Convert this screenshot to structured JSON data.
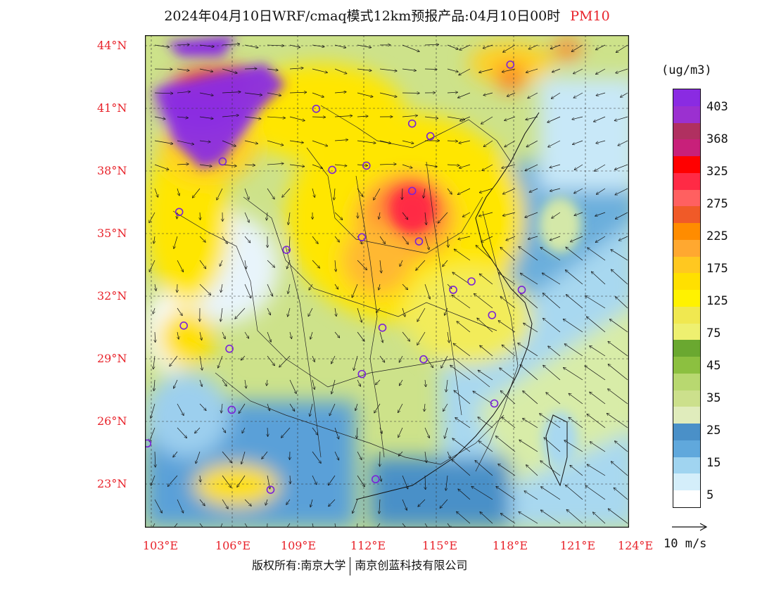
{
  "title": {
    "main": "2024年04月10日WRF/cmaq模式12km预报产品:04月10日00时",
    "pollutant": "PM10"
  },
  "axes": {
    "lat_labels": [
      "44°N",
      "41°N",
      "38°N",
      "35°N",
      "32°N",
      "29°N",
      "26°N",
      "23°N"
    ],
    "lon_labels": [
      "103°E",
      "106°E",
      "109°E",
      "112°E",
      "115°E",
      "118°E",
      "121°E",
      "124°E"
    ]
  },
  "colorbar": {
    "unit": "(ug/m3)",
    "tick_labels": [
      "403",
      "368",
      "325",
      "275",
      "225",
      "175",
      "125",
      "75",
      "45",
      "35",
      "25",
      "15",
      "5"
    ],
    "colors": [
      "#8a2be2",
      "#9b30d0",
      "#b03060",
      "#c8207a",
      "#ff0000",
      "#ff2a45",
      "#ff6060",
      "#f05a28",
      "#ff8c00",
      "#ffa830",
      "#ffc820",
      "#ffe000",
      "#fff200",
      "#f0e850",
      "#eef070",
      "#6aa830",
      "#8cc040",
      "#b8d870",
      "#cce08c",
      "#e0ecbc",
      "#4a90c8",
      "#60a8dc",
      "#a0d4f0",
      "#d4eefa",
      "#ffffff"
    ]
  },
  "wind_scale": {
    "label": "10 m/s"
  },
  "copyright": {
    "left": "版权所有:南京大学",
    "right": "南京创蓝科技有限公司"
  },
  "chart_data": {
    "type": "heatmap",
    "title": "2024年04月10日WRF/cmaq模式12km预报产品:04月10日00时 PM10",
    "lon_range": [
      102.8,
      124.0
    ],
    "lat_range": [
      21.0,
      44.4
    ],
    "colorbar_unit": "(ug/m3)",
    "colorbar_levels": [
      5,
      15,
      25,
      35,
      45,
      75,
      125,
      175,
      225,
      275,
      325,
      368,
      403
    ],
    "regions": [
      {
        "lon": 106.5,
        "lat": 41.5,
        "value": 403
      },
      {
        "lon": 104.0,
        "lat": 43.5,
        "value": 403
      },
      {
        "lon": 114.0,
        "lat": 36.8,
        "value": 300
      },
      {
        "lon": 113.5,
        "lat": 35.5,
        "value": 175
      },
      {
        "lon": 116.0,
        "lat": 33.0,
        "value": 125
      },
      {
        "lon": 111.0,
        "lat": 40.5,
        "value": 125
      },
      {
        "lon": 104.5,
        "lat": 35.5,
        "value": 100
      },
      {
        "lon": 107.5,
        "lat": 35.0,
        "value": 10
      },
      {
        "lon": 118.5,
        "lat": 31.0,
        "value": 75
      },
      {
        "lon": 110.0,
        "lat": 27.0,
        "value": 35
      },
      {
        "lon": 120.0,
        "lat": 26.0,
        "value": 25
      },
      {
        "lon": 121.0,
        "lat": 23.5,
        "value": 15
      },
      {
        "lon": 122.5,
        "lat": 38.0,
        "value": 15
      },
      {
        "lon": 119.0,
        "lat": 43.0,
        "value": 225
      }
    ],
    "stations": [
      [
        118.8,
        43.0
      ],
      [
        110.3,
        40.9
      ],
      [
        114.5,
        40.2
      ],
      [
        115.3,
        39.6
      ],
      [
        106.2,
        38.4
      ],
      [
        111.0,
        38.0
      ],
      [
        112.5,
        38.2
      ],
      [
        104.3,
        36.0
      ],
      [
        114.5,
        37.0
      ],
      [
        112.3,
        34.8
      ],
      [
        114.8,
        34.6
      ],
      [
        109.0,
        34.2
      ],
      [
        116.3,
        32.3
      ],
      [
        117.1,
        32.7
      ],
      [
        119.3,
        32.3
      ],
      [
        118.0,
        31.1
      ],
      [
        104.5,
        30.6
      ],
      [
        113.2,
        30.5
      ],
      [
        106.5,
        29.5
      ],
      [
        112.3,
        28.3
      ],
      [
        115.0,
        29.0
      ],
      [
        106.6,
        26.6
      ],
      [
        118.1,
        26.9
      ],
      [
        102.9,
        25.0
      ],
      [
        108.3,
        22.8
      ],
      [
        112.9,
        23.3
      ]
    ]
  }
}
